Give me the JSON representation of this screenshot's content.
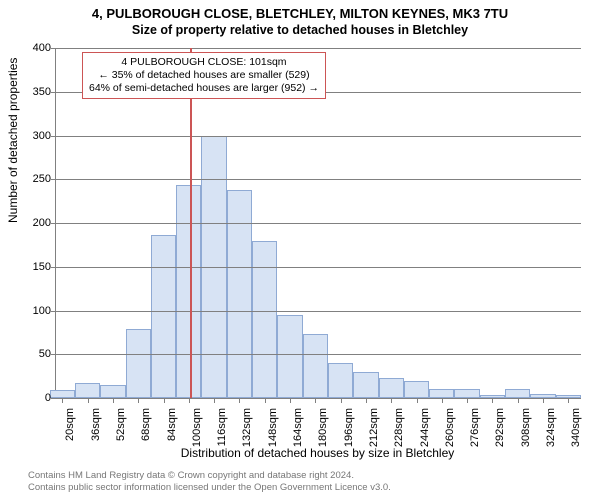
{
  "title_line1": "4, PULBOROUGH CLOSE, BLETCHLEY, MILTON KEYNES, MK3 7TU",
  "title_line2": "Size of property relative to detached houses in Bletchley",
  "ylabel": "Number of detached properties",
  "xlabel": "Distribution of detached houses by size in Bletchley",
  "chart": {
    "type": "histogram",
    "ylim": [
      0,
      400
    ],
    "ytick_step": 50,
    "yticks": [
      0,
      50,
      100,
      150,
      200,
      250,
      300,
      350,
      400
    ],
    "xticks": [
      20,
      36,
      52,
      68,
      84,
      100,
      116,
      132,
      148,
      164,
      180,
      196,
      212,
      228,
      244,
      260,
      276,
      292,
      308,
      324,
      340
    ],
    "xtick_suffix": "sqm",
    "xlim": [
      16,
      348
    ],
    "bin_width": 16,
    "bins": [
      {
        "x": 20,
        "count": 9
      },
      {
        "x": 36,
        "count": 17
      },
      {
        "x": 52,
        "count": 15
      },
      {
        "x": 68,
        "count": 79
      },
      {
        "x": 84,
        "count": 186
      },
      {
        "x": 100,
        "count": 243
      },
      {
        "x": 116,
        "count": 300
      },
      {
        "x": 132,
        "count": 238
      },
      {
        "x": 148,
        "count": 180
      },
      {
        "x": 164,
        "count": 95
      },
      {
        "x": 180,
        "count": 73
      },
      {
        "x": 196,
        "count": 40
      },
      {
        "x": 212,
        "count": 30
      },
      {
        "x": 228,
        "count": 23
      },
      {
        "x": 244,
        "count": 19
      },
      {
        "x": 260,
        "count": 10
      },
      {
        "x": 276,
        "count": 10
      },
      {
        "x": 292,
        "count": 4
      },
      {
        "x": 308,
        "count": 10
      },
      {
        "x": 324,
        "count": 5
      },
      {
        "x": 340,
        "count": 4
      }
    ],
    "bar_fill": "#d7e3f4",
    "bar_stroke": "#8faad4",
    "grid_color": "#808080",
    "marker_x": 101,
    "marker_color": "#cc5555"
  },
  "annotation": {
    "line1": "4 PULBOROUGH CLOSE: 101sqm",
    "line2": "← 35% of detached houses are smaller (529)",
    "line3": "64% of semi-detached houses are larger (952) →",
    "border_color": "#cc5555"
  },
  "footer": {
    "line1": "Contains HM Land Registry data © Crown copyright and database right 2024.",
    "line2": "Contains public sector information licensed under the Open Government Licence v3.0."
  }
}
